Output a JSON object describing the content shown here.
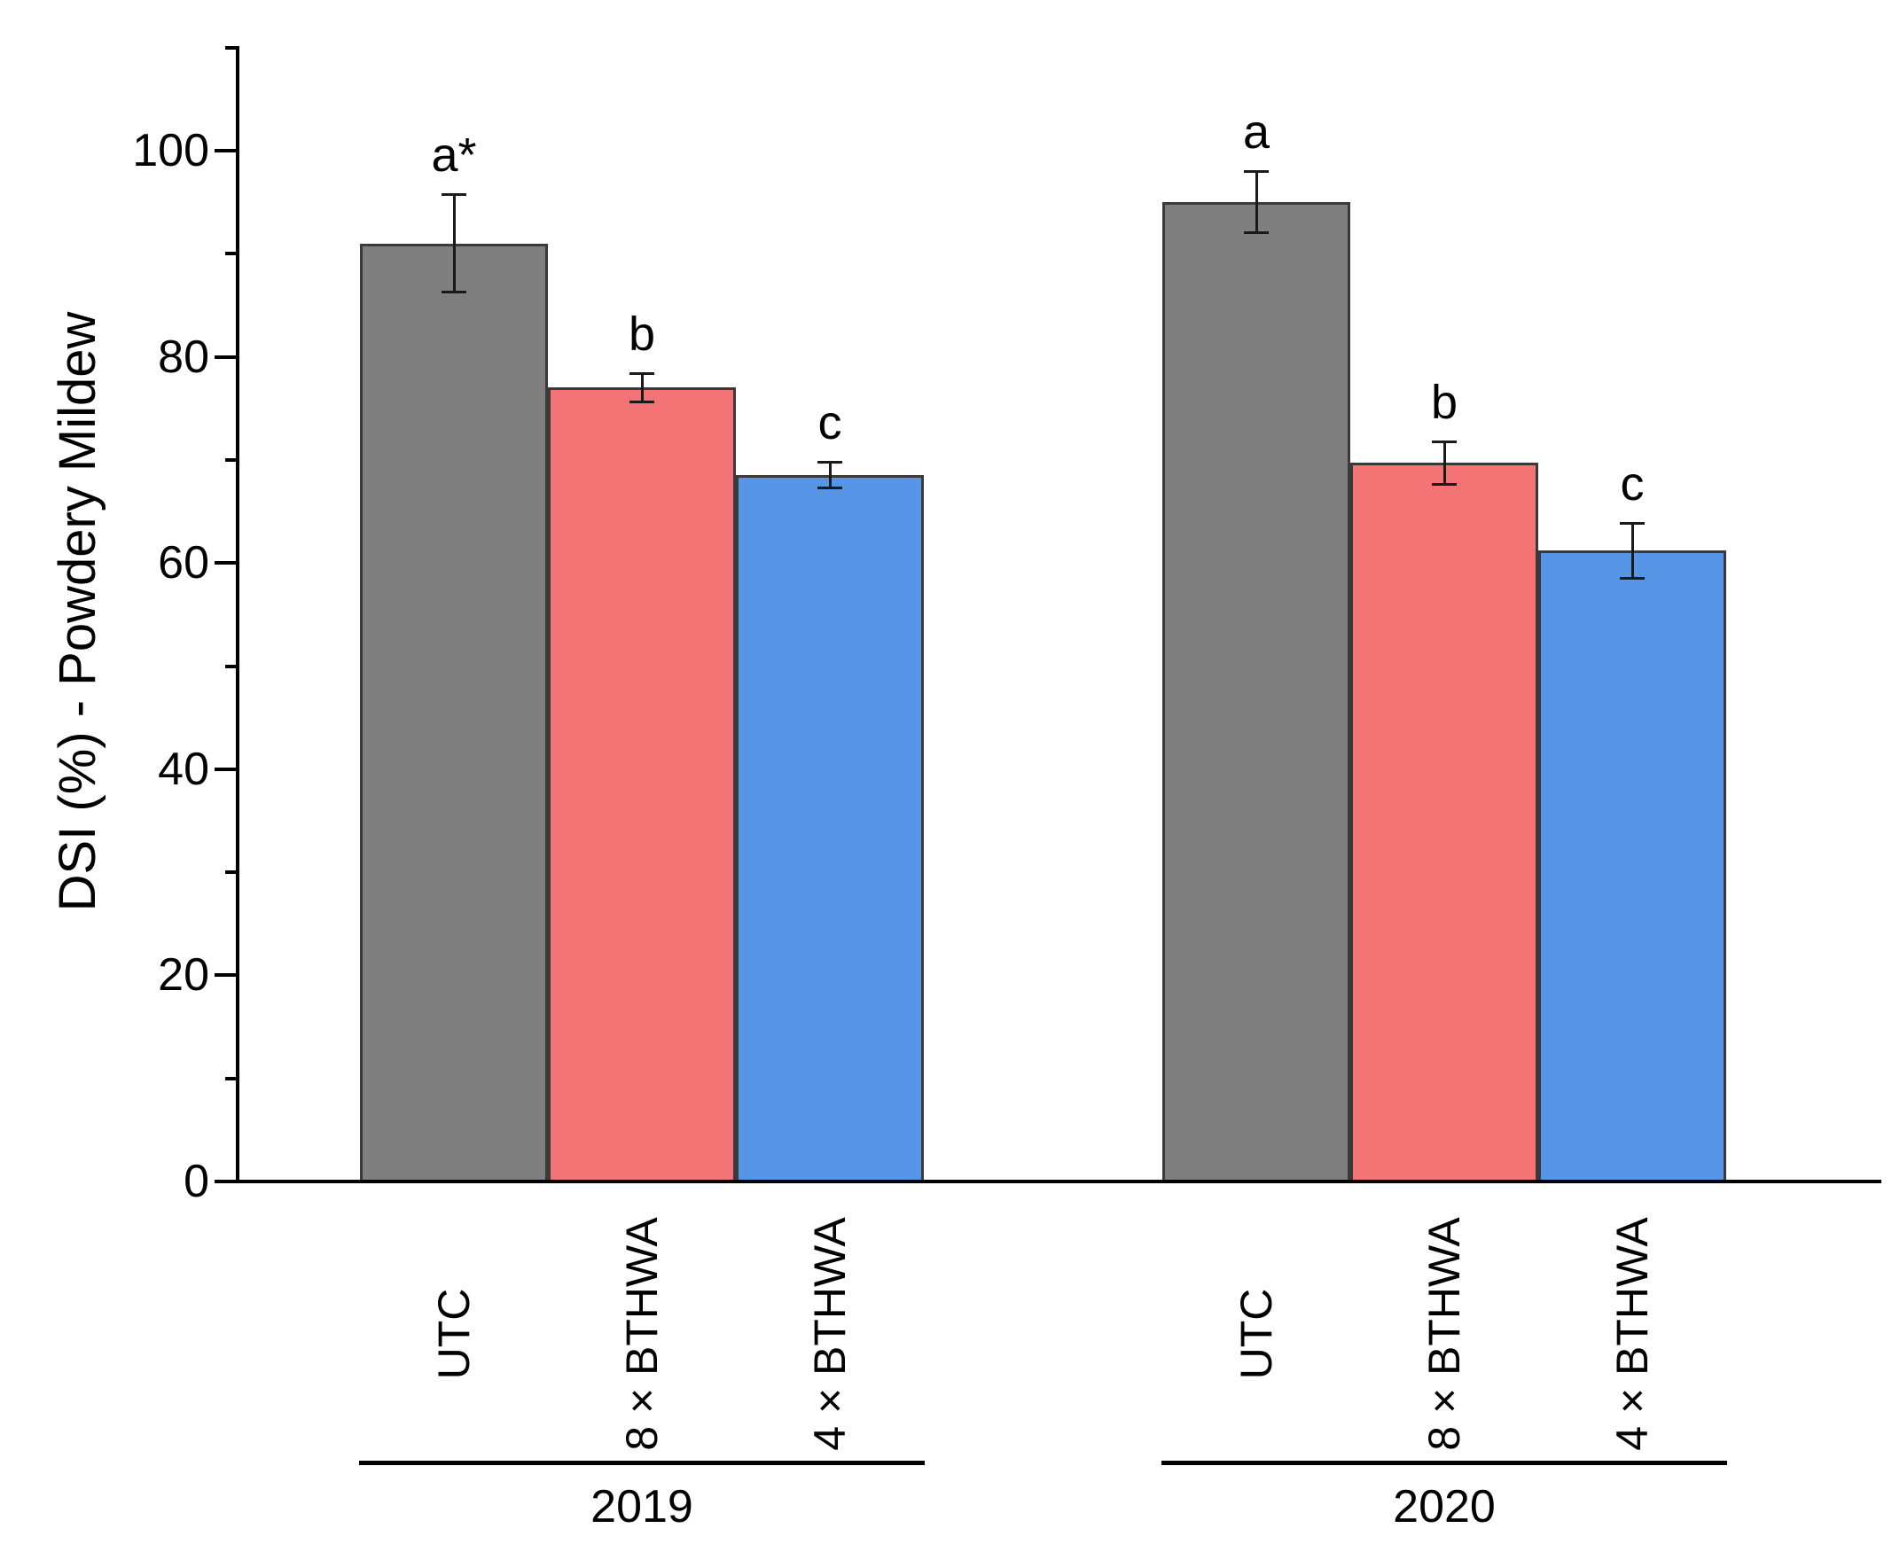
{
  "chart_data": {
    "type": "bar",
    "title": "",
    "ylabel": "DSI (%) - Powdery Mildew",
    "xlabel": "",
    "ylim": [
      0,
      110
    ],
    "yticks_major": [
      0,
      20,
      40,
      60,
      80,
      100
    ],
    "yticks_minor": [
      10,
      30,
      50,
      70,
      90,
      110
    ],
    "grid": false,
    "legend_position": "none",
    "axis_color": "#000000",
    "bar_border_color": "#3a3a3a",
    "error_bar_color": "#1a1a1a",
    "groups": [
      {
        "label": "2019",
        "bars": [
          {
            "category": "UTC",
            "value": 91,
            "error": 4.8,
            "letter": "a*",
            "color": "#7f7f7f"
          },
          {
            "category": "8 × BTHWA",
            "value": 77,
            "error": 1.4,
            "letter": "b",
            "color": "#f47475"
          },
          {
            "category": "4 × BTHWA",
            "value": 68.5,
            "error": 1.3,
            "letter": "c",
            "color": "#5795e7"
          }
        ]
      },
      {
        "label": "2020",
        "bars": [
          {
            "category": "UTC",
            "value": 95,
            "error": 3.0,
            "letter": "a",
            "color": "#7f7f7f"
          },
          {
            "category": "8 × BTHWA",
            "value": 69.7,
            "error": 2.1,
            "letter": "b",
            "color": "#f47475"
          },
          {
            "category": "4 × BTHWA",
            "value": 61.2,
            "error": 2.7,
            "letter": "c",
            "color": "#5795e7"
          }
        ]
      }
    ]
  }
}
